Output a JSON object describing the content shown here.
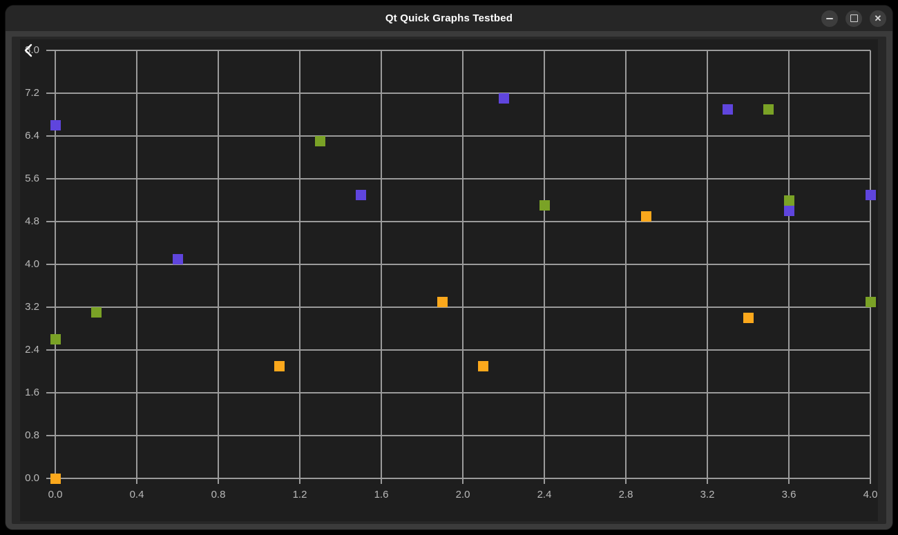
{
  "window": {
    "title": "Qt Quick Graphs Testbed",
    "controls": [
      "minimize-icon",
      "maximize-icon",
      "close-icon"
    ]
  },
  "icons": {
    "back": "chevron-left-icon"
  },
  "colors": {
    "titlebar_bg": "#262626",
    "window_frame": "#3b3b3b",
    "chart_bg": "#272727",
    "plot_bg": "#1e1e1e",
    "grid": "#9b9b9b",
    "tick_label": "#b9b9b9",
    "back_icon": "#ffffff",
    "series_purple": "#5f45dd",
    "series_green": "#7aa226",
    "series_orange": "#fba81c"
  },
  "chart_data": {
    "type": "scatter",
    "marker": "square",
    "marker_size_px": 15,
    "grid": true,
    "legend": false,
    "xlim": [
      0.0,
      4.0
    ],
    "ylim": [
      0.0,
      8.0
    ],
    "x_ticks": [
      "0.0",
      "0.4",
      "0.8",
      "1.2",
      "1.6",
      "2.0",
      "2.4",
      "2.8",
      "3.2",
      "3.6",
      "4.0"
    ],
    "y_ticks": [
      "0.0",
      "0.8",
      "1.6",
      "2.4",
      "3.2",
      "4.0",
      "4.8",
      "5.6",
      "6.4",
      "7.2",
      "8.0"
    ],
    "series": [
      {
        "name": "purple",
        "color": "#5f45dd",
        "points": [
          [
            0.0,
            6.6
          ],
          [
            0.6,
            4.1
          ],
          [
            1.5,
            5.3
          ],
          [
            2.2,
            7.1
          ],
          [
            3.3,
            6.9
          ],
          [
            3.6,
            5.0
          ],
          [
            4.0,
            5.3
          ]
        ]
      },
      {
        "name": "green",
        "color": "#7aa226",
        "points": [
          [
            0.0,
            2.6
          ],
          [
            0.2,
            3.1
          ],
          [
            1.3,
            6.3
          ],
          [
            2.4,
            5.1
          ],
          [
            3.5,
            6.9
          ],
          [
            3.6,
            5.2
          ],
          [
            4.0,
            3.3
          ]
        ]
      },
      {
        "name": "orange",
        "color": "#fba81c",
        "points": [
          [
            0.0,
            0.0
          ],
          [
            1.1,
            2.1
          ],
          [
            1.9,
            3.3
          ],
          [
            2.1,
            2.1
          ],
          [
            2.9,
            4.9
          ],
          [
            3.4,
            3.0
          ]
        ]
      }
    ]
  }
}
